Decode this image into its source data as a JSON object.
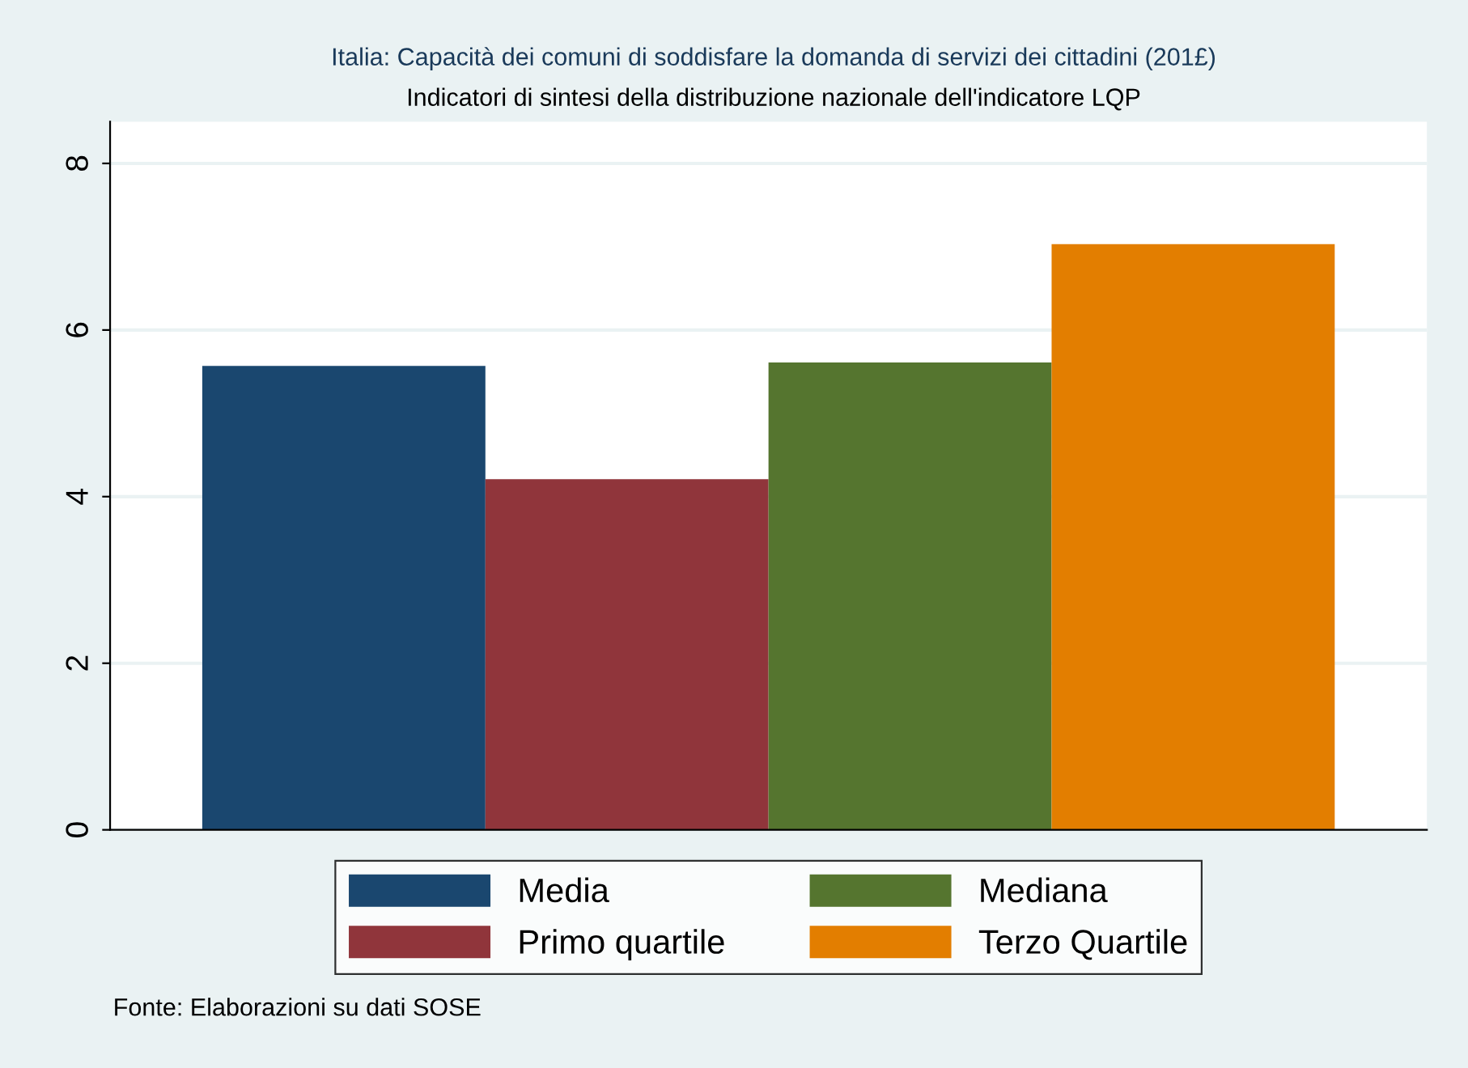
{
  "chart_data": {
    "type": "bar",
    "title": "Italia: Capacità dei comuni di soddisfare la domanda di servizi dei cittadini (201£)",
    "subtitle": "Indicatori di sintesi della distribuzione nazionale dell'indicatore LQP",
    "categories": [
      null
    ],
    "series": [
      {
        "name": "Media",
        "color": "#1a476f",
        "values": [
          5.57
        ]
      },
      {
        "name": "Primo quartile",
        "color": "#90353b",
        "values": [
          4.21
        ]
      },
      {
        "name": "Mediana",
        "color": "#55752f",
        "values": [
          5.61
        ]
      },
      {
        "name": "Terzo Quartile",
        "color": "#e37e00",
        "values": [
          7.03
        ]
      }
    ],
    "ylim": [
      0,
      8.5
    ],
    "yticks": [
      0,
      2,
      4,
      6,
      8
    ],
    "grid": "y",
    "legend": "bottom",
    "annotations": [
      "Fonte: Elaborazioni su dati SOSE"
    ]
  }
}
